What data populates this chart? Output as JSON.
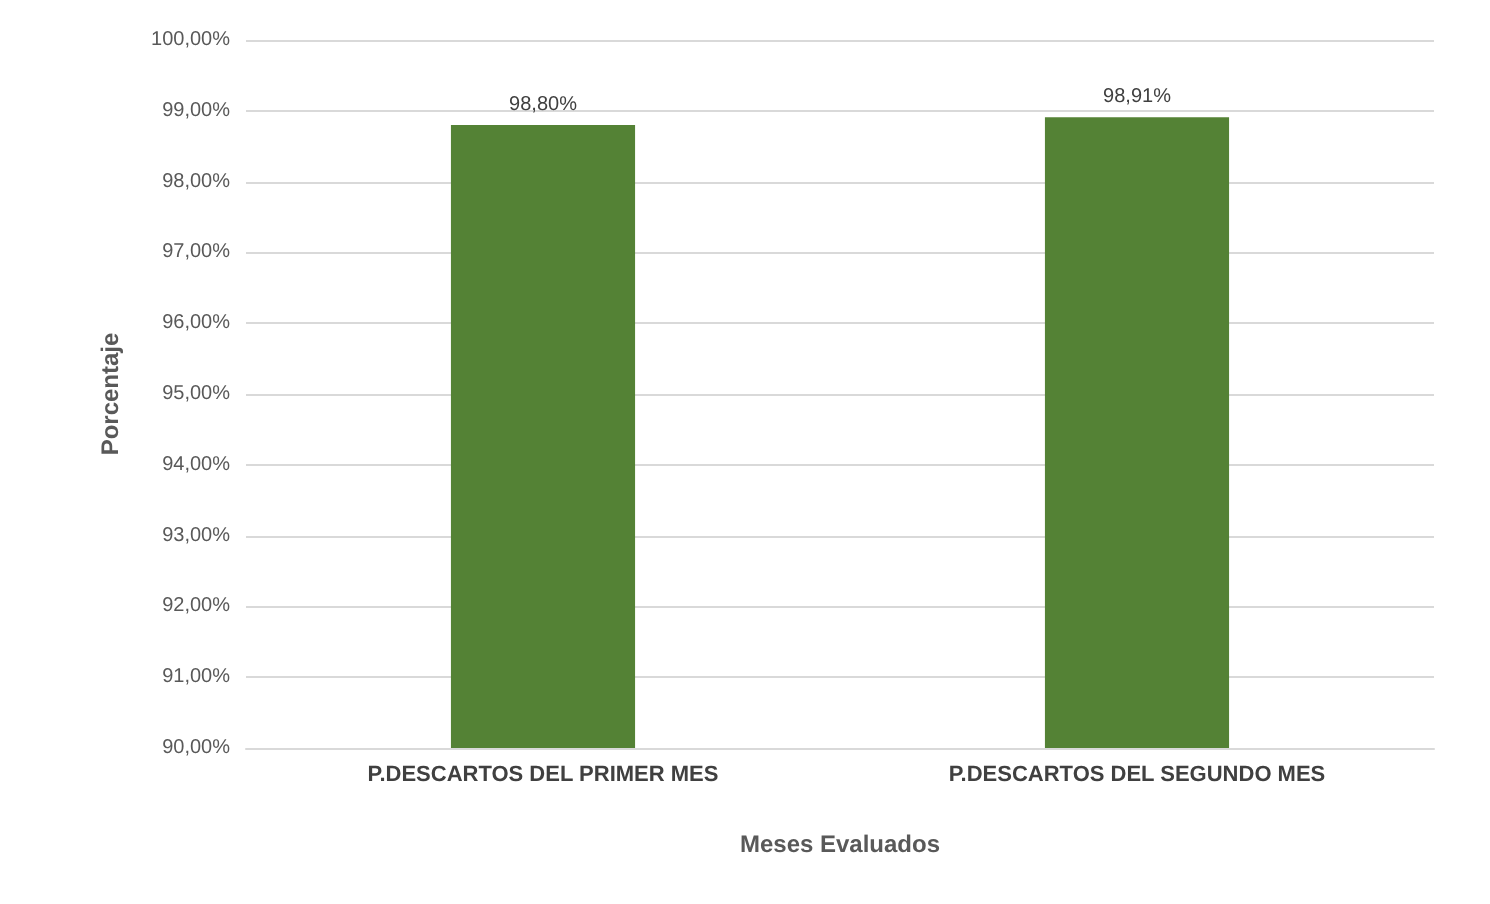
{
  "chart_data": {
    "type": "bar",
    "xlabel": "Meses Evaluados",
    "ylabel": "Porcentaje",
    "categories": [
      "P.DESCARTOS DEL PRIMER MES",
      "P.DESCARTOS DEL SEGUNDO MES"
    ],
    "values": [
      98.8,
      98.91
    ],
    "value_labels": [
      "98,80%",
      "98,91%"
    ],
    "color": "#548235",
    "ylim": [
      90,
      100
    ],
    "yticks": [
      {
        "value": 90,
        "label": "90,00%"
      },
      {
        "value": 91,
        "label": "91,00%"
      },
      {
        "value": 92,
        "label": "92,00%"
      },
      {
        "value": 93,
        "label": "93,00%"
      },
      {
        "value": 94,
        "label": "94,00%"
      },
      {
        "value": 95,
        "label": "95,00%"
      },
      {
        "value": 96,
        "label": "96,00%"
      },
      {
        "value": 97,
        "label": "97,00%"
      },
      {
        "value": 98,
        "label": "98,00%"
      },
      {
        "value": 99,
        "label": "99,00%"
      },
      {
        "value": 100,
        "label": "100,00%"
      }
    ],
    "grid": "y"
  }
}
